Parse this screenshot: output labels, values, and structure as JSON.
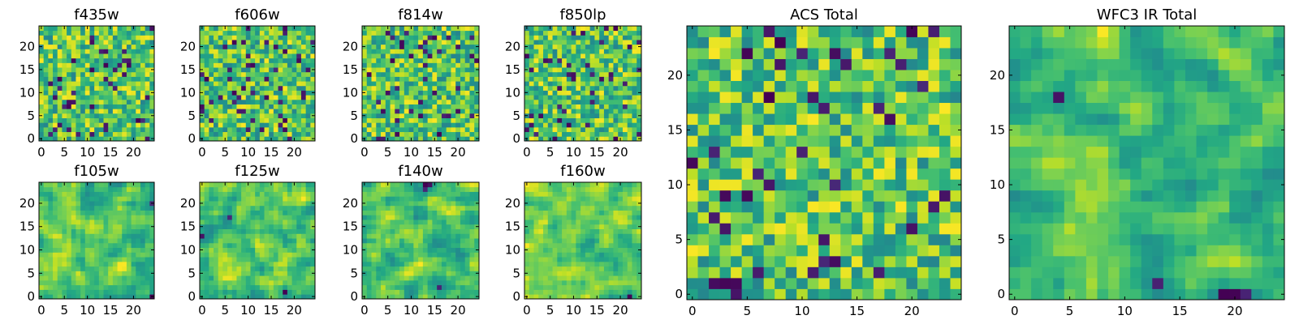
{
  "chart_data": [
    {
      "type": "heatmap",
      "title": "f435w",
      "xticks": [
        0,
        5,
        10,
        15,
        20
      ],
      "yticks": [
        0,
        5,
        10,
        15,
        20
      ],
      "xlim": [
        -0.5,
        24.5
      ],
      "ylim": [
        -0.5,
        24.5
      ],
      "grid_size": 25,
      "colormap": "viridis",
      "pattern": "fine-noise",
      "seed": 11
    },
    {
      "type": "heatmap",
      "title": "f606w",
      "xticks": [
        0,
        5,
        10,
        15,
        20
      ],
      "yticks": [
        0,
        5,
        10,
        15,
        20
      ],
      "xlim": [
        -0.5,
        24.5
      ],
      "ylim": [
        -0.5,
        24.5
      ],
      "grid_size": 25,
      "colormap": "viridis",
      "pattern": "fine-noise",
      "seed": 23
    },
    {
      "type": "heatmap",
      "title": "f814w",
      "xticks": [
        0,
        5,
        10,
        15,
        20
      ],
      "yticks": [
        0,
        5,
        10,
        15,
        20
      ],
      "xlim": [
        -0.5,
        24.5
      ],
      "ylim": [
        -0.5,
        24.5
      ],
      "grid_size": 25,
      "colormap": "viridis",
      "pattern": "fine-noise",
      "seed": 37
    },
    {
      "type": "heatmap",
      "title": "f850lp",
      "xticks": [
        0,
        5,
        10,
        15,
        20
      ],
      "yticks": [
        0,
        5,
        10,
        15,
        20
      ],
      "xlim": [
        -0.5,
        24.5
      ],
      "ylim": [
        -0.5,
        24.5
      ],
      "grid_size": 25,
      "colormap": "viridis",
      "pattern": "fine-noise",
      "seed": 41
    },
    {
      "type": "heatmap",
      "title": "f105w",
      "xticks": [
        0,
        5,
        10,
        15,
        20
      ],
      "yticks": [
        0,
        5,
        10,
        15,
        20
      ],
      "xlim": [
        -0.5,
        24.5
      ],
      "ylim": [
        -0.5,
        24.5
      ],
      "grid_size": 25,
      "colormap": "viridis",
      "pattern": "smooth-noise",
      "seed": 53
    },
    {
      "type": "heatmap",
      "title": "f125w",
      "xticks": [
        0,
        5,
        10,
        15,
        20
      ],
      "yticks": [
        0,
        5,
        10,
        15,
        20
      ],
      "xlim": [
        -0.5,
        24.5
      ],
      "ylim": [
        -0.5,
        24.5
      ],
      "grid_size": 25,
      "colormap": "viridis",
      "pattern": "smooth-noise",
      "seed": 67
    },
    {
      "type": "heatmap",
      "title": "f140w",
      "xticks": [
        0,
        5,
        10,
        15,
        20
      ],
      "yticks": [
        0,
        5,
        10,
        15,
        20
      ],
      "xlim": [
        -0.5,
        24.5
      ],
      "ylim": [
        -0.5,
        24.5
      ],
      "grid_size": 25,
      "colormap": "viridis",
      "pattern": "smooth-noise",
      "seed": 71
    },
    {
      "type": "heatmap",
      "title": "f160w",
      "xticks": [
        0,
        5,
        10,
        15,
        20
      ],
      "yticks": [
        0,
        5,
        10,
        15,
        20
      ],
      "xlim": [
        -0.5,
        24.5
      ],
      "ylim": [
        -0.5,
        24.5
      ],
      "grid_size": 25,
      "colormap": "viridis",
      "pattern": "smooth-noise",
      "seed": 83
    },
    {
      "type": "heatmap",
      "title": "ACS Total",
      "xticks": [
        0,
        5,
        10,
        15,
        20
      ],
      "yticks": [
        0,
        5,
        10,
        15,
        20
      ],
      "xlim": [
        -0.5,
        24.5
      ],
      "ylim": [
        -0.5,
        24.5
      ],
      "grid_size": 25,
      "colormap": "viridis",
      "pattern": "fine-noise",
      "seed": 97
    },
    {
      "type": "heatmap",
      "title": "WFC3 IR Total",
      "xticks": [
        0,
        5,
        10,
        15,
        20
      ],
      "yticks": [
        0,
        5,
        10,
        15,
        20
      ],
      "xlim": [
        -0.5,
        24.5
      ],
      "ylim": [
        -0.5,
        24.5
      ],
      "grid_size": 25,
      "colormap": "viridis",
      "pattern": "smooth-noise",
      "seed": 101
    }
  ]
}
